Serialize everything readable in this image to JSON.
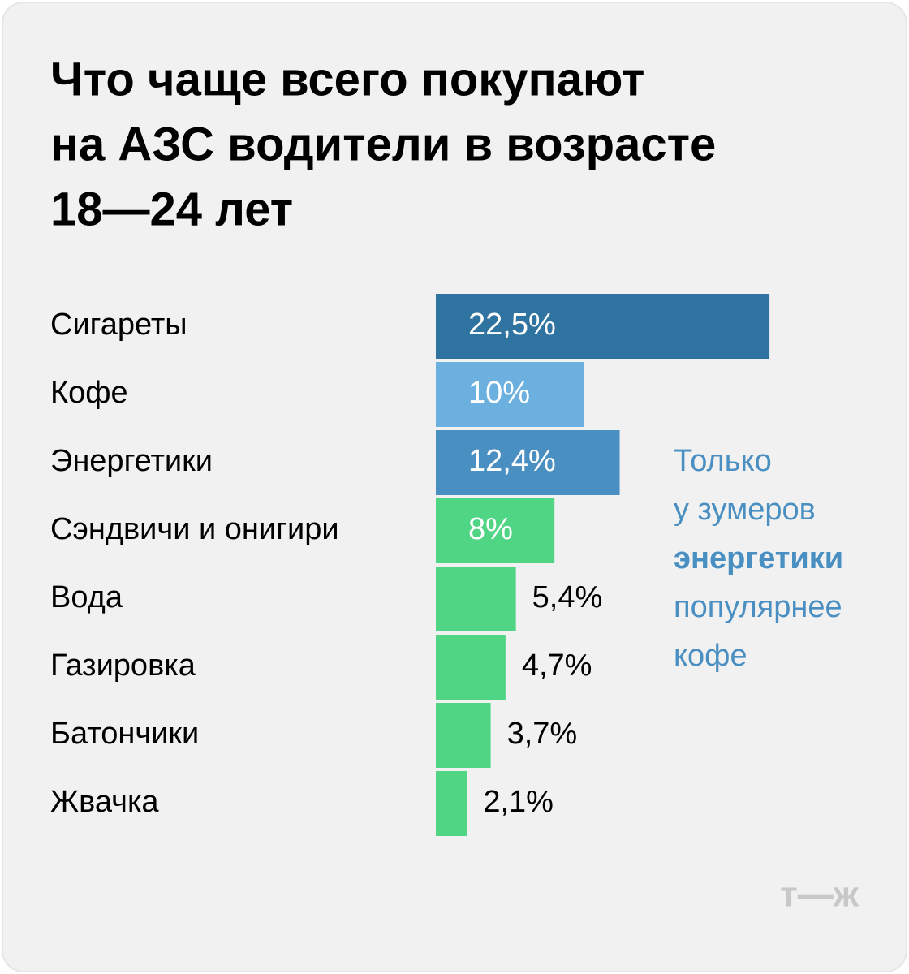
{
  "chart_data": {
    "type": "bar",
    "orientation": "horizontal",
    "title": [
      "Что чаще всего покупают",
      "на АЗС водители в возрасте",
      "18—24 лет"
    ],
    "categories": [
      "Сигареты",
      "Кофе",
      "Энергетики",
      "Сэндвичи и онигири",
      "Вода",
      "Газировка",
      "Батончики",
      "Жвачка"
    ],
    "values": [
      22.5,
      10,
      12.4,
      8,
      5.4,
      4.7,
      3.7,
      2.1
    ],
    "value_labels": [
      "22,5%",
      "10%",
      "12,4%",
      "8%",
      "5,4%",
      "4,7%",
      "3,7%",
      "2,1%"
    ],
    "colors": [
      "#2f74a0",
      "#6cb0e0",
      "#4a8fc2",
      "#50d585",
      "#50d585",
      "#50d585",
      "#50d585",
      "#50d585"
    ],
    "annotation": [
      {
        "text": "Только",
        "bold": false
      },
      {
        "text": "у зумеров",
        "bold": false
      },
      {
        "text": "энергетики",
        "bold": true
      },
      {
        "text": "популярнее",
        "bold": false
      },
      {
        "text": "кофе",
        "bold": false
      }
    ],
    "annotation_color": "#4a8fc2",
    "logo": "т—ж"
  }
}
